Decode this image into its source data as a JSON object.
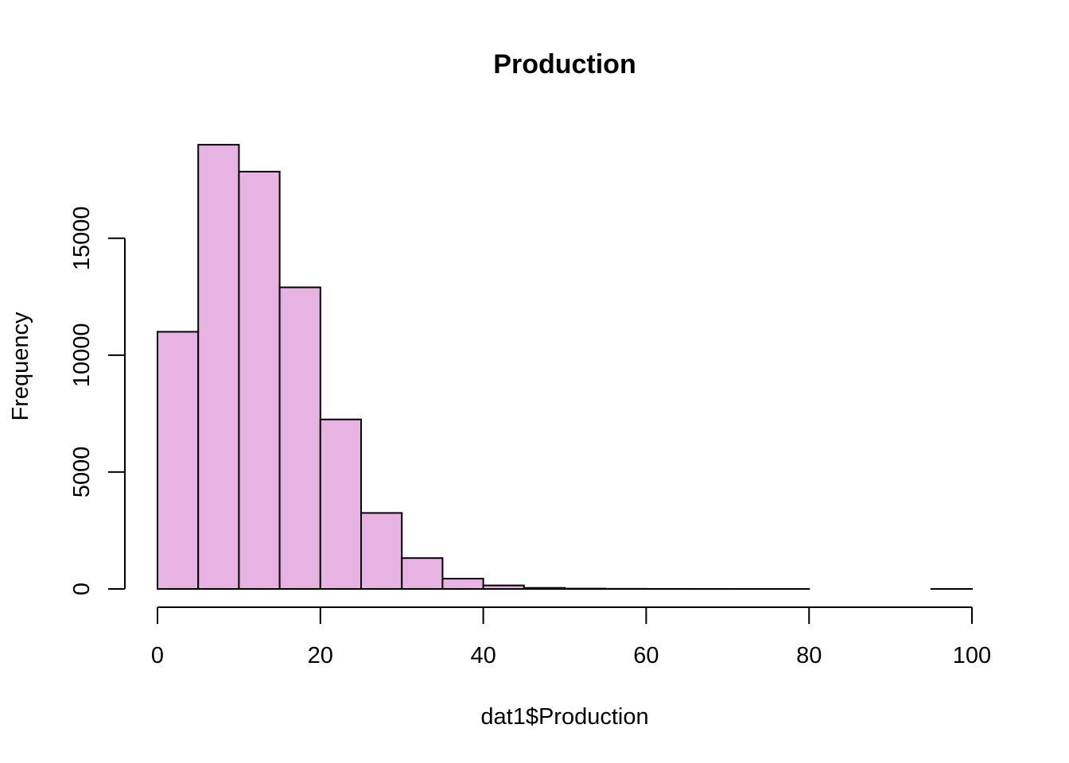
{
  "chart_data": {
    "type": "bar",
    "title": "Production",
    "xlabel": "dat1$Production",
    "ylabel": "Frequency",
    "bar_color": "#e6b3e3",
    "bin_width": 5,
    "bins": [
      {
        "start": 0,
        "end": 5,
        "count": 11000
      },
      {
        "start": 5,
        "end": 10,
        "count": 19000
      },
      {
        "start": 10,
        "end": 15,
        "count": 17850
      },
      {
        "start": 15,
        "end": 20,
        "count": 12900
      },
      {
        "start": 20,
        "end": 25,
        "count": 7250
      },
      {
        "start": 25,
        "end": 30,
        "count": 3250
      },
      {
        "start": 30,
        "end": 35,
        "count": 1320
      },
      {
        "start": 35,
        "end": 40,
        "count": 440
      },
      {
        "start": 40,
        "end": 45,
        "count": 150
      },
      {
        "start": 45,
        "end": 50,
        "count": 45
      },
      {
        "start": 50,
        "end": 55,
        "count": 15
      },
      {
        "start": 55,
        "end": 60,
        "count": 6
      },
      {
        "start": 60,
        "end": 65,
        "count": 3
      },
      {
        "start": 65,
        "end": 70,
        "count": 2
      },
      {
        "start": 70,
        "end": 75,
        "count": 1
      },
      {
        "start": 75,
        "end": 80,
        "count": 1
      },
      {
        "start": 80,
        "end": 85,
        "count": 0
      },
      {
        "start": 85,
        "end": 90,
        "count": 0
      },
      {
        "start": 90,
        "end": 95,
        "count": 0
      },
      {
        "start": 95,
        "end": 100,
        "count": 1
      }
    ],
    "xlim": [
      0,
      100
    ],
    "ylim": [
      0,
      19000
    ],
    "x_ticks": [
      {
        "value": 0,
        "label": "0"
      },
      {
        "value": 20,
        "label": "20"
      },
      {
        "value": 40,
        "label": "40"
      },
      {
        "value": 60,
        "label": "60"
      },
      {
        "value": 80,
        "label": "80"
      },
      {
        "value": 100,
        "label": "100"
      }
    ],
    "y_ticks": [
      {
        "value": 0,
        "label": "0"
      },
      {
        "value": 5000,
        "label": "5000"
      },
      {
        "value": 10000,
        "label": "10000"
      },
      {
        "value": 15000,
        "label": "15000"
      }
    ],
    "grid": false,
    "legend": "none"
  }
}
